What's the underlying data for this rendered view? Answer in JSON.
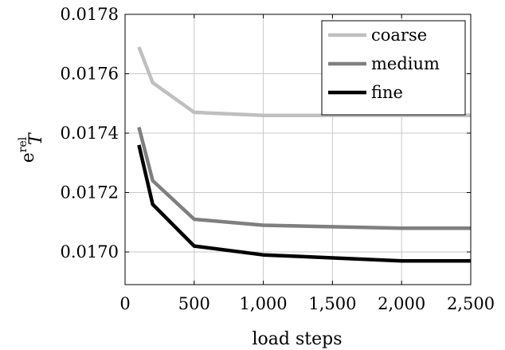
{
  "chart_data": {
    "type": "line",
    "xlabel": "load steps",
    "ylabel": "e",
    "ylabel_superscript": "rel",
    "ylabel_subscript": "T",
    "xlim": [
      0,
      2500
    ],
    "ylim": [
      0.01689,
      0.0178
    ],
    "xticks": [
      0,
      500,
      1000,
      1500,
      2000,
      2500
    ],
    "xtick_labels": [
      "0",
      "500",
      "1,000",
      "1,500",
      "2,000",
      "2,500"
    ],
    "yticks": [
      0.017,
      0.0172,
      0.0174,
      0.0176,
      0.0178
    ],
    "ytick_labels": [
      "0.0170",
      "0.0172",
      "0.0174",
      "0.0176",
      "0.0178"
    ],
    "grid": true,
    "legend_position": "top-right",
    "series": [
      {
        "name": "coarse",
        "color": "#bfbfbf",
        "x": [
          100,
          200,
          500,
          1000,
          2000,
          2500
        ],
        "y": [
          0.01769,
          0.01757,
          0.01747,
          0.01746,
          0.01746,
          0.01746
        ]
      },
      {
        "name": "medium",
        "color": "#7f7f7f",
        "x": [
          100,
          200,
          500,
          1000,
          2000,
          2500
        ],
        "y": [
          0.01742,
          0.01724,
          0.01711,
          0.01709,
          0.01708,
          0.01708
        ]
      },
      {
        "name": "fine",
        "color": "#000000",
        "x": [
          100,
          200,
          500,
          1000,
          2000,
          2500
        ],
        "y": [
          0.01736,
          0.01716,
          0.01702,
          0.01699,
          0.01697,
          0.01697
        ]
      }
    ]
  }
}
